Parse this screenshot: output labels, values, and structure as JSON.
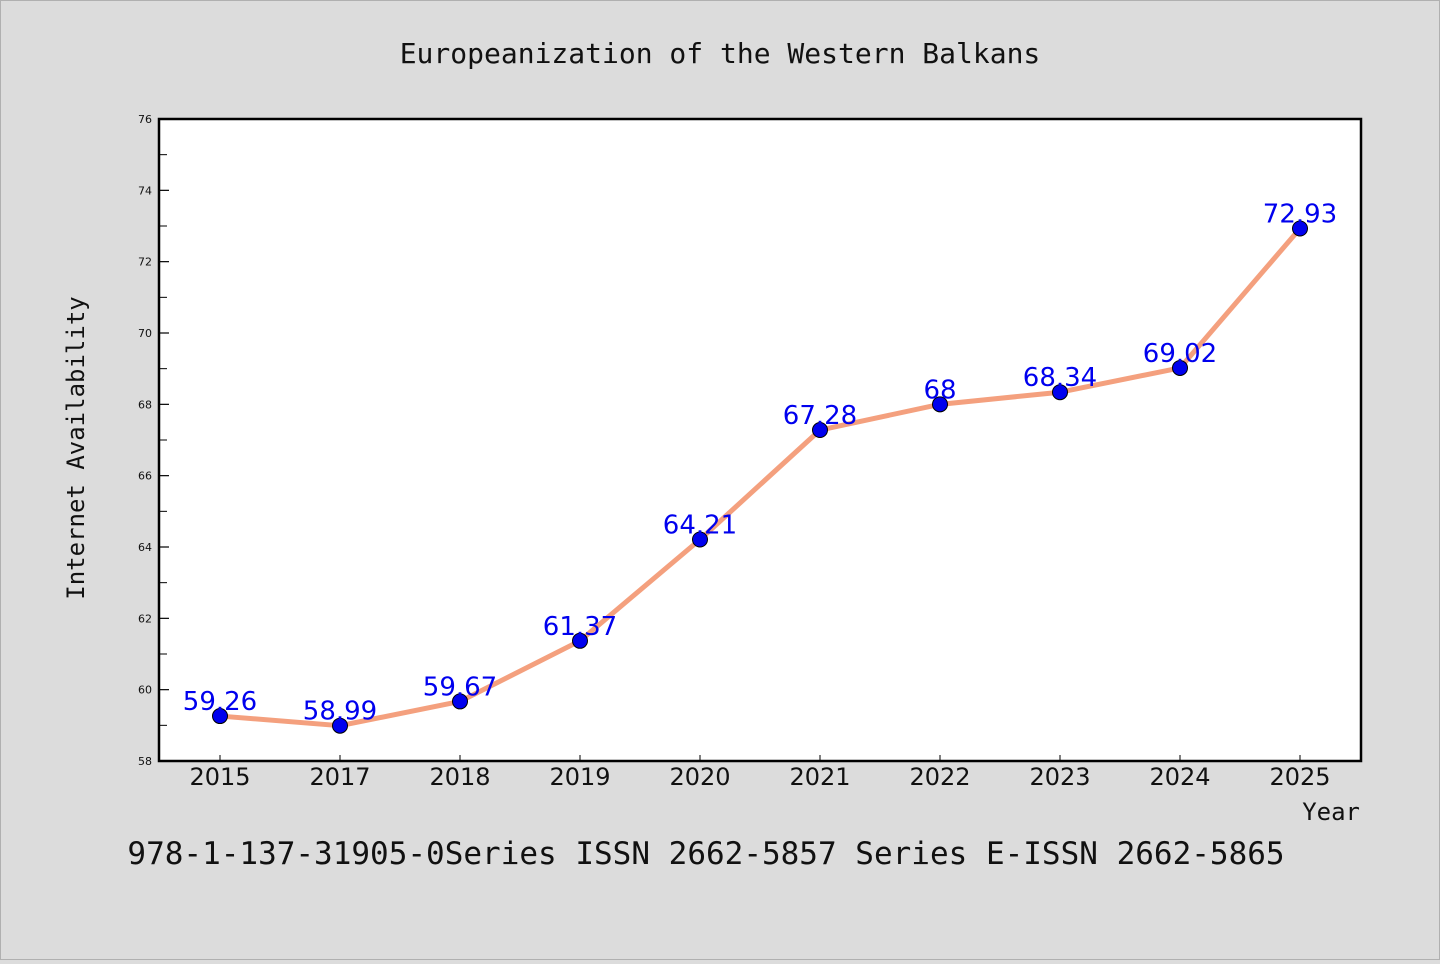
{
  "chart_data": {
    "type": "line",
    "title": "Europeanization of the Western Balkans",
    "xlabel": "Year",
    "ylabel": "Internet Availability",
    "categories": [
      "2015",
      "2017",
      "2018",
      "2019",
      "2020",
      "2021",
      "2022",
      "2023",
      "2024",
      "2025"
    ],
    "series": [
      {
        "values": [
          59.26,
          58.99,
          59.67,
          61.37,
          64.21,
          67.28,
          68,
          68.34,
          69.02,
          72.93
        ],
        "labels": [
          "59.26",
          "58.99",
          "59.67",
          "61.37",
          "64.21",
          "67.28",
          "68",
          "68.34",
          "69.02",
          "72.93"
        ],
        "line_color": "#f4a07e",
        "marker_color": "#0000ee"
      }
    ],
    "ylim": [
      58,
      76
    ],
    "yticks": [
      "58",
      "60",
      "62",
      "64",
      "66",
      "68",
      "70",
      "72",
      "74",
      "76"
    ],
    "label_color": "#0000ee",
    "grid": false,
    "legend": "none"
  },
  "footer": {
    "text": "978-1-137-31905-0Series ISSN 2662-5857 Series E-ISSN 2662-5865"
  }
}
